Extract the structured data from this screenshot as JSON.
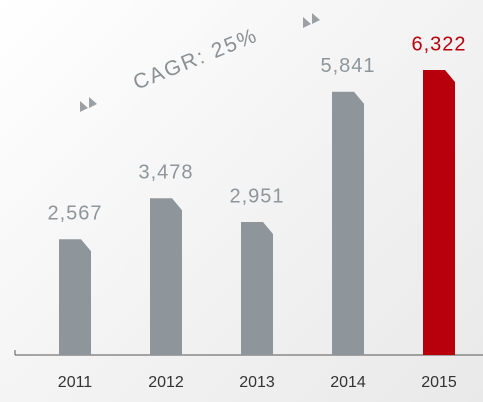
{
  "chart_data": {
    "type": "bar",
    "annotation": "CAGR: 25%",
    "categories": [
      "2011",
      "2012",
      "2013",
      "2014",
      "2015"
    ],
    "values": [
      2567,
      3478,
      2951,
      5841,
      6322
    ],
    "value_labels": [
      "2,567",
      "3,478",
      "2,951",
      "5,841",
      "6,322"
    ],
    "colors": [
      "#8e969b",
      "#8e969b",
      "#8e969b",
      "#8e969b",
      "#b8000c"
    ],
    "ylim": [
      0,
      6500
    ]
  }
}
